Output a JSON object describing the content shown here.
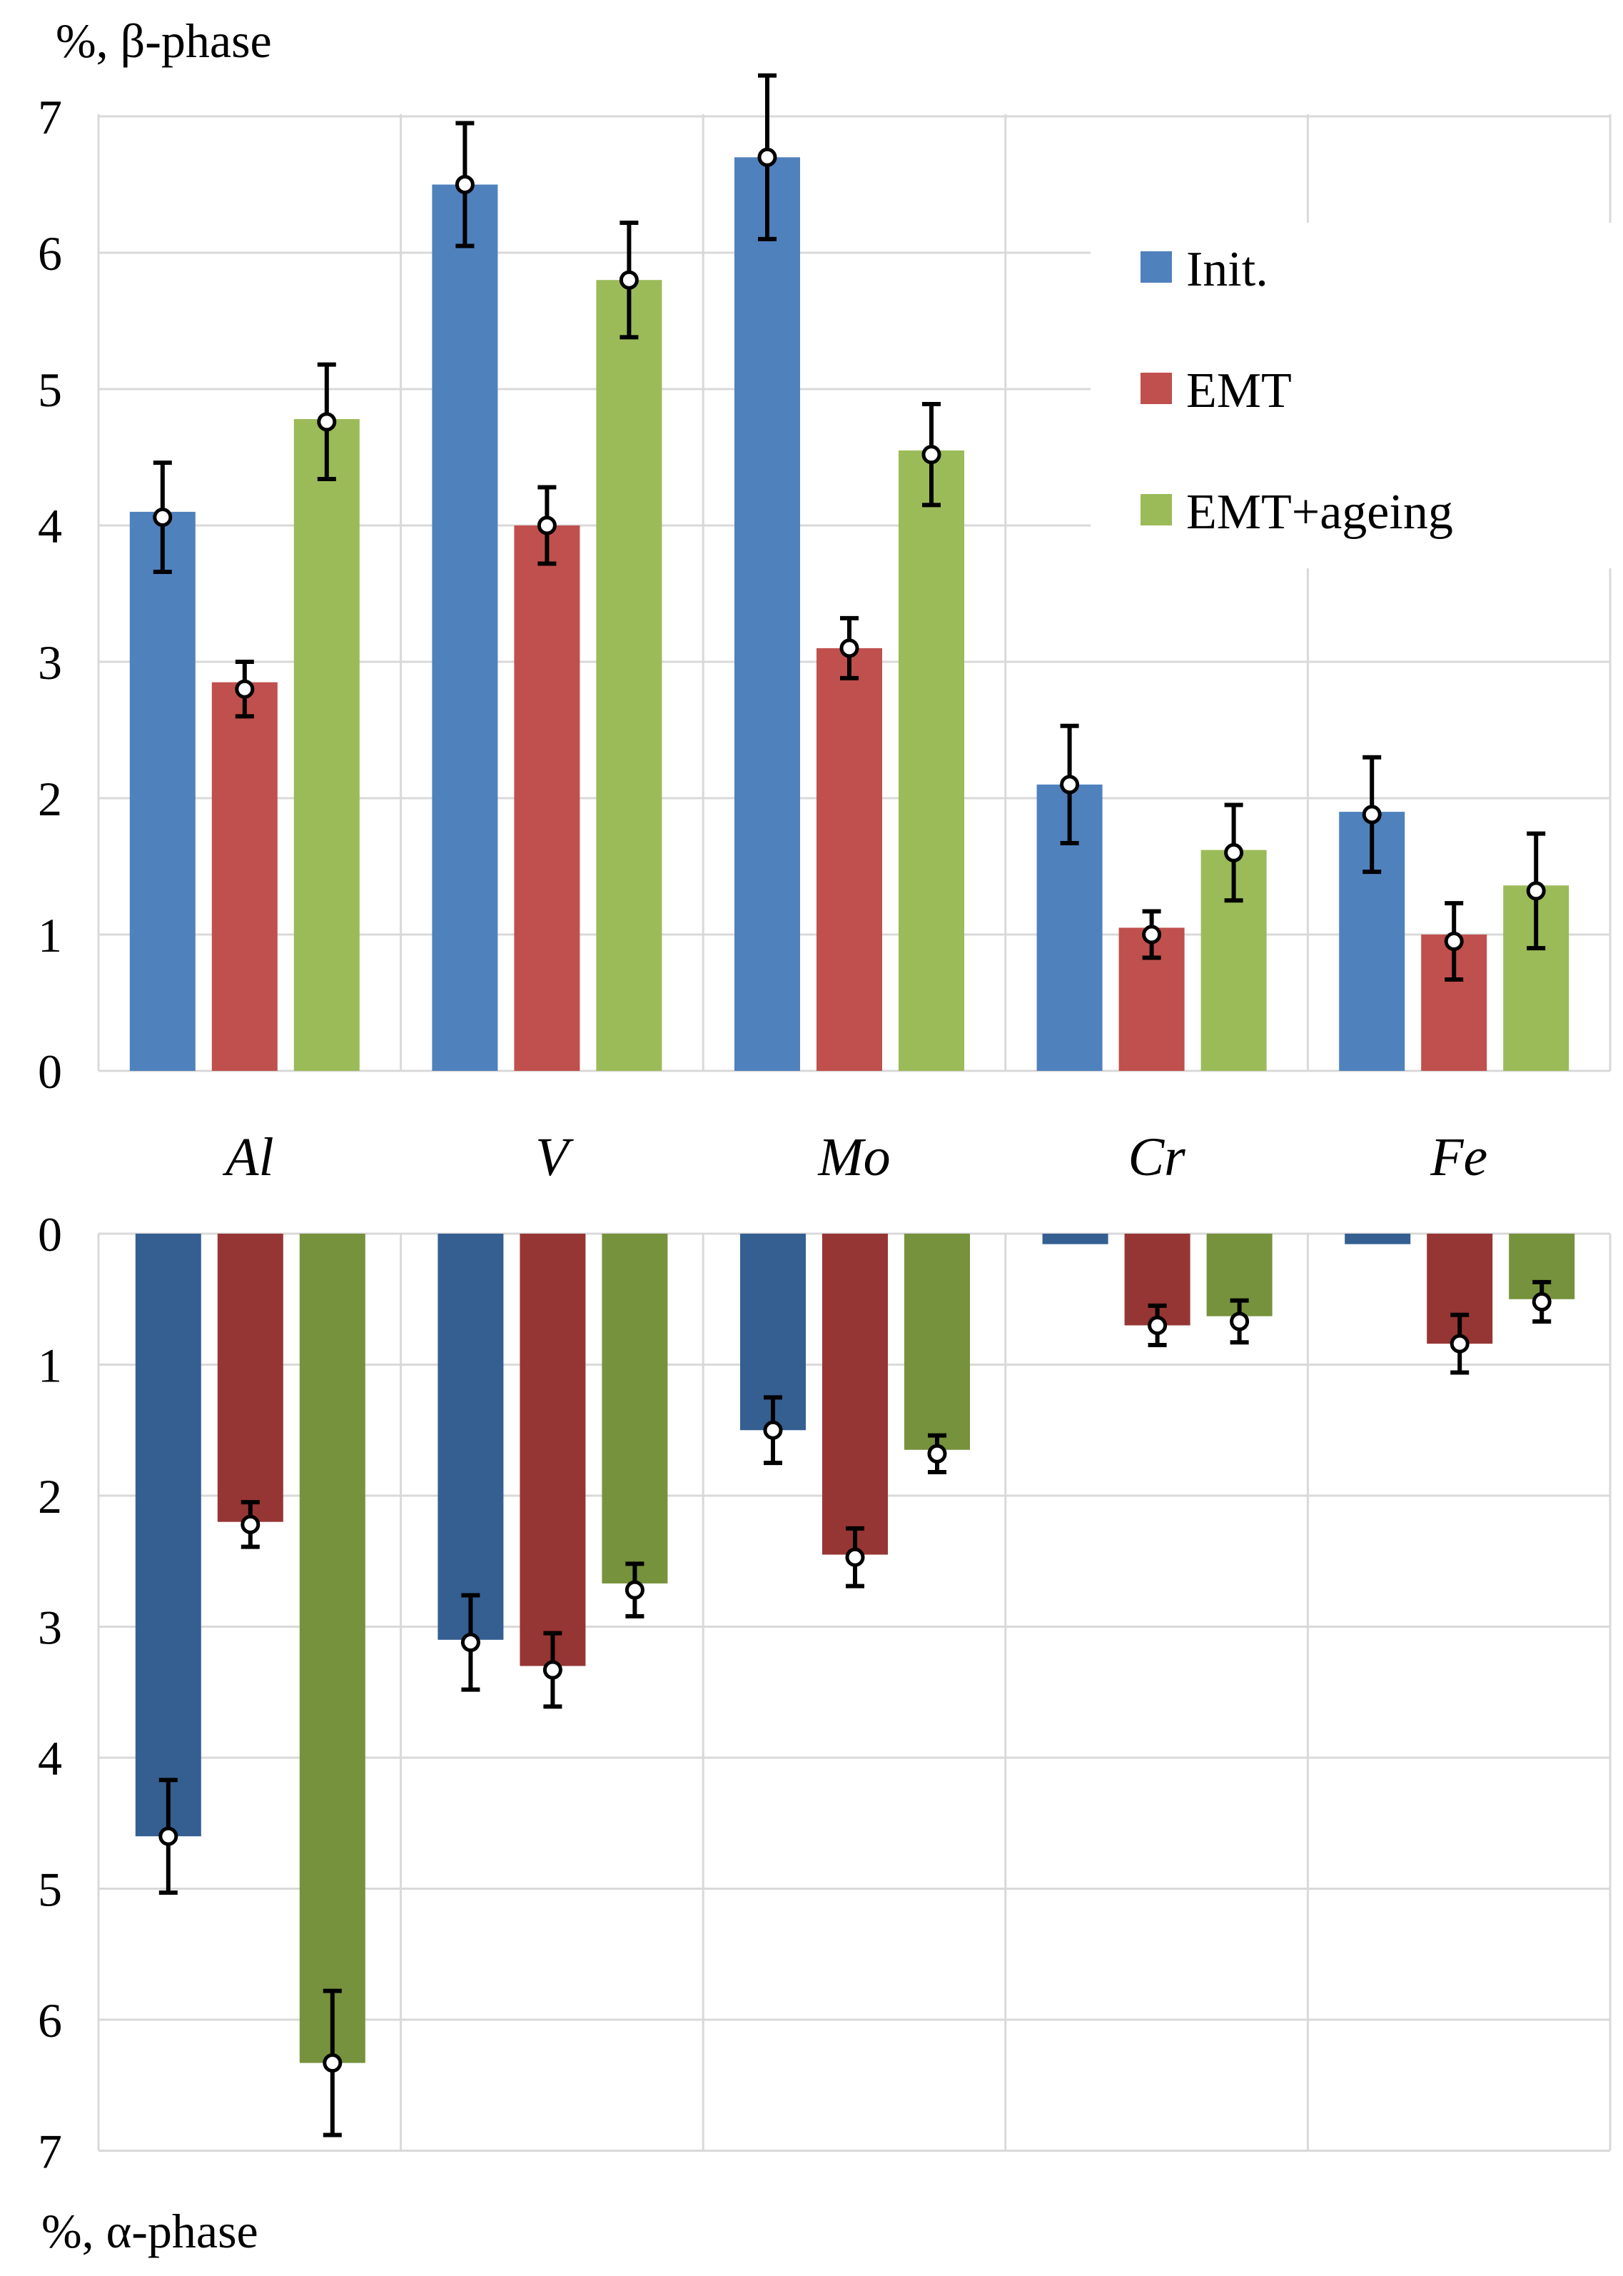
{
  "chart_data": [
    {
      "type": "bar",
      "panel": "top",
      "ylabel": "%, β-phase",
      "ylim": [
        0,
        7
      ],
      "yticks": [
        "0",
        "1",
        "2",
        "3",
        "4",
        "5",
        "6",
        "7"
      ],
      "categories": [
        "Al",
        "V",
        "Mo",
        "Cr",
        "Fe"
      ],
      "series": [
        {
          "name": "Init.",
          "color": "#4f81bd",
          "values": [
            4.1,
            6.5,
            6.7,
            2.1,
            1.9
          ],
          "errors": [
            0.4,
            0.45,
            0.6,
            0.43,
            0.42
          ]
        },
        {
          "name": "EMT",
          "color": "#c0504d",
          "values": [
            2.85,
            4.0,
            3.1,
            1.05,
            1.0
          ],
          "errors": [
            0.2,
            0.28,
            0.22,
            0.17,
            0.28
          ]
        },
        {
          "name": "EMT+ageing",
          "color": "#9bbb59",
          "values": [
            4.78,
            5.8,
            4.55,
            1.62,
            1.36
          ],
          "errors": [
            0.42,
            0.42,
            0.37,
            0.35,
            0.42
          ]
        }
      ],
      "markers": [
        [
          4.06,
          6.5,
          6.7,
          2.1,
          1.88
        ],
        [
          2.8,
          4.0,
          3.1,
          1.0,
          0.95
        ],
        [
          4.76,
          5.8,
          4.52,
          1.6,
          1.32
        ]
      ],
      "legend_position": "top-right"
    },
    {
      "type": "bar",
      "panel": "bottom",
      "ylabel": "%, α-phase",
      "ylim": [
        0,
        7
      ],
      "yticks": [
        "0",
        "1",
        "2",
        "3",
        "4",
        "5",
        "6",
        "7"
      ],
      "inverted": true,
      "categories": [
        "Al",
        "V",
        "Mo",
        "Cr",
        "Fe"
      ],
      "series": [
        {
          "name": "Init.",
          "color": "#355f91",
          "values": [
            4.6,
            3.1,
            1.5,
            0.08,
            0.08
          ],
          "errors": [
            0.43,
            0.36,
            0.25,
            null,
            null
          ]
        },
        {
          "name": "EMT",
          "color": "#963634",
          "values": [
            2.2,
            3.3,
            2.45,
            0.7,
            0.84
          ],
          "errors": [
            0.17,
            0.28,
            0.22,
            0.15,
            0.22
          ]
        },
        {
          "name": "EMT+ageing",
          "color": "#76923c",
          "values": [
            6.33,
            2.67,
            1.65,
            0.63,
            0.5
          ],
          "errors": [
            0.55,
            0.2,
            0.14,
            0.16,
            0.15
          ]
        }
      ],
      "markers": [
        [
          4.6,
          3.12,
          1.5,
          null,
          null
        ],
        [
          2.22,
          3.33,
          2.47,
          0.7,
          0.84
        ],
        [
          6.33,
          2.72,
          1.68,
          0.67,
          0.52
        ]
      ]
    }
  ]
}
